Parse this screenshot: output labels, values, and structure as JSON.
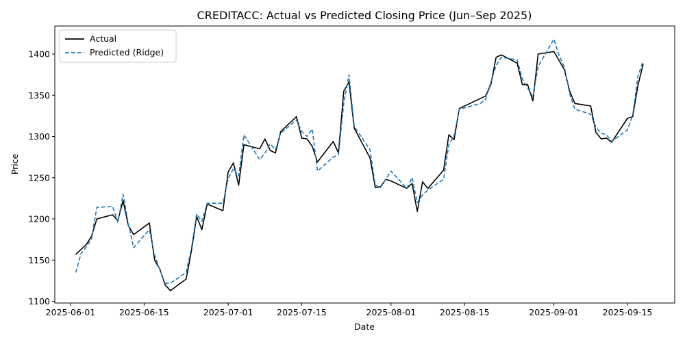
{
  "chart_data": {
    "type": "line",
    "title": "CREDITACC: Actual vs Predicted Closing Price (Jun–Sep 2025)",
    "xlabel": "Date",
    "ylabel": "Price",
    "x_ticks": [
      "2025-06-01",
      "2025-06-15",
      "2025-07-01",
      "2025-07-15",
      "2025-08-01",
      "2025-08-15",
      "2025-09-01",
      "2025-09-15"
    ],
    "y_ticks": [
      1100,
      1150,
      1200,
      1250,
      1300,
      1350,
      1400
    ],
    "xlim": [
      "2025-05-29",
      "2025-09-24"
    ],
    "ylim": [
      1098,
      1434
    ],
    "grid": false,
    "legend_position": "top-left",
    "series": [
      {
        "name": "Actual",
        "color": "#000000",
        "style": "solid",
        "points": [
          [
            "2025-06-02",
            1157
          ],
          [
            "2025-06-04",
            1169
          ],
          [
            "2025-06-05",
            1179
          ],
          [
            "2025-06-06",
            1200
          ],
          [
            "2025-06-09",
            1205
          ],
          [
            "2025-06-10",
            1198
          ],
          [
            "2025-06-11",
            1222
          ],
          [
            "2025-06-12",
            1192
          ],
          [
            "2025-06-13",
            1181
          ],
          [
            "2025-06-16",
            1195
          ],
          [
            "2025-06-17",
            1150
          ],
          [
            "2025-06-18",
            1139
          ],
          [
            "2025-06-19",
            1120
          ],
          [
            "2025-06-20",
            1113
          ],
          [
            "2025-06-23",
            1127
          ],
          [
            "2025-06-24",
            1161
          ],
          [
            "2025-06-25",
            1203
          ],
          [
            "2025-06-26",
            1187
          ],
          [
            "2025-06-27",
            1218
          ],
          [
            "2025-06-30",
            1210
          ],
          [
            "2025-07-01",
            1257
          ],
          [
            "2025-07-02",
            1268
          ],
          [
            "2025-07-03",
            1241
          ],
          [
            "2025-07-04",
            1290
          ],
          [
            "2025-07-07",
            1285
          ],
          [
            "2025-07-08",
            1297
          ],
          [
            "2025-07-09",
            1283
          ],
          [
            "2025-07-10",
            1280
          ],
          [
            "2025-07-11",
            1306
          ],
          [
            "2025-07-14",
            1324
          ],
          [
            "2025-07-15",
            1298
          ],
          [
            "2025-07-16",
            1297
          ],
          [
            "2025-07-17",
            1288
          ],
          [
            "2025-07-18",
            1269
          ],
          [
            "2025-07-21",
            1294
          ],
          [
            "2025-07-22",
            1280
          ],
          [
            "2025-07-23",
            1355
          ],
          [
            "2025-07-24",
            1366
          ],
          [
            "2025-07-25",
            1310
          ],
          [
            "2025-07-28",
            1274
          ],
          [
            "2025-07-29",
            1238
          ],
          [
            "2025-07-30",
            1239
          ],
          [
            "2025-07-31",
            1248
          ],
          [
            "2025-08-01",
            1246
          ],
          [
            "2025-08-04",
            1237
          ],
          [
            "2025-08-05",
            1243
          ],
          [
            "2025-08-06",
            1209
          ],
          [
            "2025-08-07",
            1245
          ],
          [
            "2025-08-08",
            1237
          ],
          [
            "2025-08-11",
            1259
          ],
          [
            "2025-08-12",
            1302
          ],
          [
            "2025-08-13",
            1296
          ],
          [
            "2025-08-14",
            1334
          ],
          [
            "2025-08-18",
            1346
          ],
          [
            "2025-08-19",
            1349
          ],
          [
            "2025-08-20",
            1363
          ],
          [
            "2025-08-21",
            1396
          ],
          [
            "2025-08-22",
            1399
          ],
          [
            "2025-08-25",
            1389
          ],
          [
            "2025-08-26",
            1363
          ],
          [
            "2025-08-27",
            1363
          ],
          [
            "2025-08-28",
            1343
          ],
          [
            "2025-08-29",
            1400
          ],
          [
            "2025-09-01",
            1403
          ],
          [
            "2025-09-02",
            1392
          ],
          [
            "2025-09-03",
            1381
          ],
          [
            "2025-09-04",
            1355
          ],
          [
            "2025-09-05",
            1340
          ],
          [
            "2025-09-08",
            1337
          ],
          [
            "2025-09-09",
            1305
          ],
          [
            "2025-09-10",
            1297
          ],
          [
            "2025-09-11",
            1298
          ],
          [
            "2025-09-12",
            1293
          ],
          [
            "2025-09-15",
            1322
          ],
          [
            "2025-09-16",
            1324
          ],
          [
            "2025-09-17",
            1362
          ],
          [
            "2025-09-18",
            1388
          ]
        ]
      },
      {
        "name": "Predicted (Ridge)",
        "color": "#1f77b4",
        "style": "dashed",
        "points": [
          [
            "2025-06-02",
            1135
          ],
          [
            "2025-06-03",
            1158
          ],
          [
            "2025-06-04",
            1166
          ],
          [
            "2025-06-05",
            1176
          ],
          [
            "2025-06-06",
            1214
          ],
          [
            "2025-06-09",
            1215
          ],
          [
            "2025-06-10",
            1196
          ],
          [
            "2025-06-11",
            1230
          ],
          [
            "2025-06-12",
            1194
          ],
          [
            "2025-06-13",
            1165
          ],
          [
            "2025-06-16",
            1187
          ],
          [
            "2025-06-17",
            1156
          ],
          [
            "2025-06-18",
            1138
          ],
          [
            "2025-06-19",
            1122
          ],
          [
            "2025-06-20",
            1122
          ],
          [
            "2025-06-23",
            1135
          ],
          [
            "2025-06-24",
            1164
          ],
          [
            "2025-06-25",
            1206
          ],
          [
            "2025-06-26",
            1197
          ],
          [
            "2025-06-27",
            1219
          ],
          [
            "2025-06-30",
            1219
          ],
          [
            "2025-07-01",
            1249
          ],
          [
            "2025-07-02",
            1261
          ],
          [
            "2025-07-03",
            1252
          ],
          [
            "2025-07-04",
            1302
          ],
          [
            "2025-07-07",
            1272
          ],
          [
            "2025-07-08",
            1280
          ],
          [
            "2025-07-09",
            1291
          ],
          [
            "2025-07-10",
            1284
          ],
          [
            "2025-07-11",
            1304
          ],
          [
            "2025-07-14",
            1320
          ],
          [
            "2025-07-15",
            1306
          ],
          [
            "2025-07-16",
            1300
          ],
          [
            "2025-07-17",
            1309
          ],
          [
            "2025-07-18",
            1258
          ],
          [
            "2025-07-21",
            1275
          ],
          [
            "2025-07-22",
            1278
          ],
          [
            "2025-07-23",
            1340
          ],
          [
            "2025-07-24",
            1375
          ],
          [
            "2025-07-25",
            1312
          ],
          [
            "2025-07-28",
            1284
          ],
          [
            "2025-07-29",
            1241
          ],
          [
            "2025-07-30",
            1238
          ],
          [
            "2025-07-31",
            1248
          ],
          [
            "2025-08-01",
            1258
          ],
          [
            "2025-08-04",
            1237
          ],
          [
            "2025-08-05",
            1250
          ],
          [
            "2025-08-06",
            1220
          ],
          [
            "2025-08-07",
            1229
          ],
          [
            "2025-08-08",
            1235
          ],
          [
            "2025-08-11",
            1248
          ],
          [
            "2025-08-12",
            1290
          ],
          [
            "2025-08-13",
            1301
          ],
          [
            "2025-08-14",
            1333
          ],
          [
            "2025-08-18",
            1340
          ],
          [
            "2025-08-19",
            1345
          ],
          [
            "2025-08-20",
            1366
          ],
          [
            "2025-08-21",
            1386
          ],
          [
            "2025-08-22",
            1396
          ],
          [
            "2025-08-25",
            1393
          ],
          [
            "2025-08-26",
            1370
          ],
          [
            "2025-08-27",
            1359
          ],
          [
            "2025-08-28",
            1348
          ],
          [
            "2025-08-29",
            1385
          ],
          [
            "2025-09-01",
            1418
          ],
          [
            "2025-09-02",
            1398
          ],
          [
            "2025-09-03",
            1384
          ],
          [
            "2025-09-04",
            1352
          ],
          [
            "2025-09-05",
            1333
          ],
          [
            "2025-09-08",
            1327
          ],
          [
            "2025-09-09",
            1311
          ],
          [
            "2025-09-10",
            1304
          ],
          [
            "2025-09-11",
            1302
          ],
          [
            "2025-09-12",
            1294
          ],
          [
            "2025-09-15",
            1308
          ],
          [
            "2025-09-16",
            1326
          ],
          [
            "2025-09-17",
            1373
          ],
          [
            "2025-09-18",
            1392
          ]
        ]
      }
    ]
  }
}
